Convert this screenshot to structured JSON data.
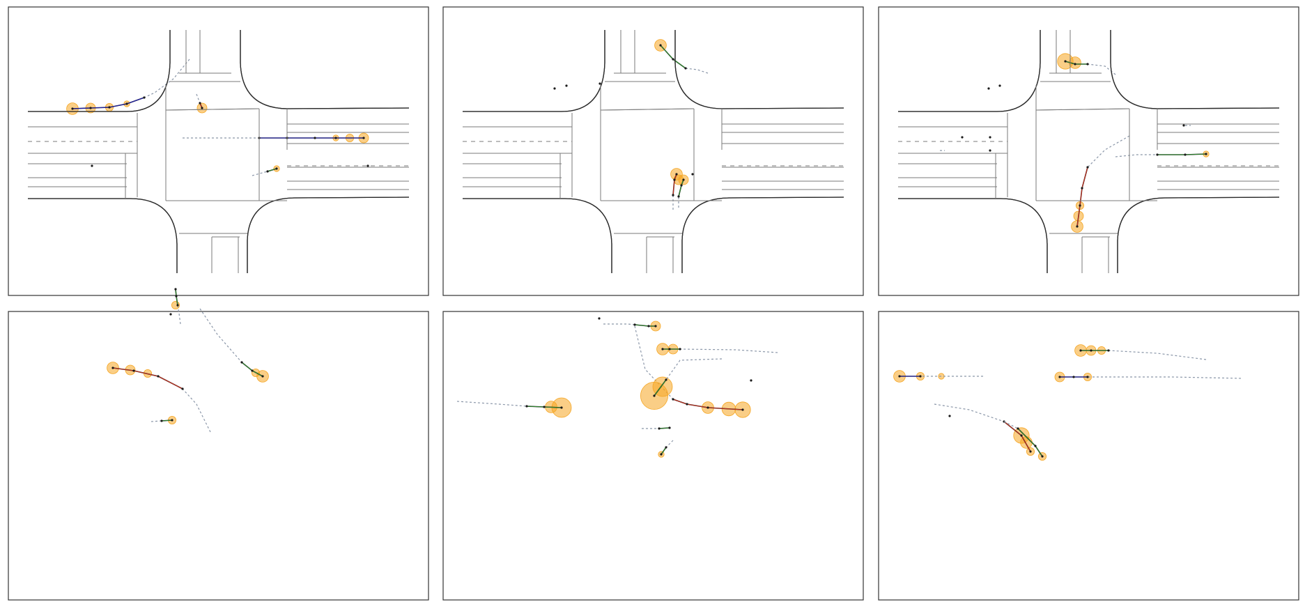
{
  "colors": {
    "road": "#2b2b2b",
    "lane": "#7a7a7a",
    "history": "#8a96a8",
    "dot": "#1a1a1a",
    "future_a": "#1f1fb4",
    "future_b": "#c8301e",
    "future_c": "#2e8b2e",
    "uncertainty": "#f5a623"
  },
  "panels": [
    {
      "name": "scene-1",
      "agents": [
        {
          "history": [
            [
              260,
              75
            ],
            [
              237,
              103
            ],
            [
              210,
              123
            ],
            [
              195,
              130
            ]
          ],
          "future": [
            [
              195,
              130
            ],
            [
              170,
              139
            ],
            [
              145,
              144
            ],
            [
              118,
              145
            ],
            [
              92,
              146
            ]
          ],
          "color": "future_a",
          "blobs": [
            [
              92,
              146,
              6
            ],
            [
              118,
              145,
              5
            ],
            [
              145,
              144,
              4
            ],
            [
              170,
              139,
              3
            ]
          ]
        },
        {
          "history": [
            [
              270,
              125
            ],
            [
              275,
              138
            ]
          ],
          "future": [
            [
              275,
              138
            ],
            [
              278,
              145
            ]
          ],
          "color": "future_b",
          "blobs": [
            [
              278,
              145,
              5
            ]
          ]
        },
        {
          "history": [
            [
              250,
              188
            ],
            [
              300,
              188
            ],
            [
              360,
              188
            ]
          ],
          "future": [
            [
              360,
              188
            ],
            [
              400,
              188
            ],
            [
              440,
              188
            ],
            [
              470,
              188
            ],
            [
              510,
              188
            ]
          ],
          "color": "future_a",
          "blobs": [
            [
              470,
              188,
              3
            ],
            [
              490,
              188,
              4
            ],
            [
              510,
              188,
              5
            ]
          ]
        },
        {
          "history": [
            [
              350,
              242
            ],
            [
              372,
              236
            ]
          ],
          "future": [
            [
              372,
              236
            ],
            [
              385,
              232
            ]
          ],
          "color": "future_c",
          "blobs": [
            [
              385,
              232,
              3
            ]
          ]
        }
      ],
      "dots": [
        [
          120,
          228
        ],
        [
          516,
          228
        ]
      ]
    },
    {
      "name": "scene-2",
      "agents": [
        {
          "history": [
            [
              380,
              95
            ],
            [
              365,
              90
            ],
            [
              348,
              88
            ]
          ],
          "future": [
            [
              348,
              88
            ],
            [
              330,
              75
            ],
            [
              312,
              55
            ]
          ],
          "color": "future_c",
          "blobs": [
            [
              312,
              55,
              6
            ]
          ]
        },
        {
          "history": [
            [
              330,
              291
            ],
            [
              330,
              270
            ]
          ],
          "future": [
            [
              330,
              270
            ],
            [
              332,
              248
            ],
            [
              335,
              240
            ]
          ],
          "color": "future_b",
          "blobs": [
            [
              335,
              240,
              6
            ],
            [
              338,
              248,
              5
            ]
          ]
        },
        {
          "history": [
            [
              338,
              288
            ],
            [
              338,
              272
            ]
          ],
          "future": [
            [
              338,
              272
            ],
            [
              342,
              256
            ],
            [
              345,
              248
            ]
          ],
          "color": "future_c",
          "blobs": [
            [
              345,
              248,
              5
            ]
          ]
        }
      ],
      "dots": [
        [
          160,
          117
        ],
        [
          177,
          113
        ],
        [
          225,
          110
        ],
        [
          358,
          240
        ]
      ]
    },
    {
      "name": "scene-3",
      "agents": [
        {
          "history": [
            [
              340,
              97
            ],
            [
              325,
              85
            ],
            [
              300,
              82
            ]
          ],
          "future": [
            [
              300,
              82
            ],
            [
              282,
              82
            ],
            [
              268,
              78
            ]
          ],
          "color": "future_c",
          "blobs": [
            [
              268,
              78,
              8
            ],
            [
              282,
              80,
              6
            ]
          ]
        },
        {
          "history": [
            [
              360,
              185
            ],
            [
              325,
              205
            ],
            [
              300,
              230
            ]
          ],
          "future": [
            [
              300,
              230
            ],
            [
              292,
              260
            ],
            [
              289,
              285
            ],
            [
              285,
              315
            ]
          ],
          "color": "future_b",
          "blobs": [
            [
              289,
              285,
              4
            ],
            [
              287,
              300,
              5
            ],
            [
              285,
              315,
              6
            ]
          ]
        },
        {
          "history": [
            [
              340,
              215
            ],
            [
              370,
              212
            ],
            [
              400,
              212
            ]
          ],
          "future": [
            [
              400,
              212
            ],
            [
              440,
              212
            ],
            [
              470,
              211
            ]
          ],
          "color": "future_c",
          "blobs": [
            [
              470,
              211,
              3
            ]
          ]
        },
        {
          "history": [
            [
              88,
              206
            ],
            [
              95,
              206
            ]
          ],
          "future": [],
          "color": "future_a",
          "blobs": []
        },
        {
          "history": [
            [
              440,
              170
            ],
            [
              448,
              170
            ]
          ],
          "future": [],
          "color": "future_a",
          "blobs": []
        }
      ],
      "dots": [
        [
          158,
          117
        ],
        [
          174,
          113
        ],
        [
          120,
          187
        ],
        [
          160,
          187
        ],
        [
          160,
          206
        ],
        [
          438,
          170
        ]
      ]
    },
    {
      "name": "scene-4",
      "agents": [
        {
          "history": [
            [
              247,
              455
            ],
            [
              245,
              440
            ],
            [
              243,
              428
            ]
          ],
          "future": [
            [
              243,
              428
            ],
            [
              241,
              415
            ],
            [
              240,
              405
            ]
          ],
          "color": "future_c",
          "blobs": [
            [
              240,
              428,
              4
            ]
          ]
        },
        {
          "history": [
            [
              275,
              433
            ],
            [
              300,
              470
            ],
            [
              335,
              510
            ]
          ],
          "future": [
            [
              335,
              510
            ],
            [
              350,
              522
            ],
            [
              365,
              530
            ]
          ],
          "color": "future_c",
          "blobs": [
            [
              355,
              525,
              4
            ],
            [
              365,
              530,
              6
            ]
          ]
        },
        {
          "history": [
            [
              290,
              610
            ],
            [
              270,
              570
            ],
            [
              250,
              548
            ]
          ],
          "future": [
            [
              250,
              548
            ],
            [
              215,
              530
            ],
            [
              180,
              522
            ],
            [
              150,
              518
            ]
          ],
          "color": "future_b",
          "blobs": [
            [
              150,
              518,
              6
            ],
            [
              175,
              521,
              5
            ],
            [
              200,
              526,
              4
            ]
          ]
        },
        {
          "history": [
            [
              205,
              595
            ],
            [
              220,
              594
            ]
          ],
          "future": [
            [
              220,
              594
            ],
            [
              235,
              593
            ]
          ],
          "color": "future_c",
          "blobs": [
            [
              235,
              593,
              4
            ]
          ]
        }
      ],
      "dots": [
        [
          233,
          441
        ]
      ]
    },
    {
      "name": "scene-5",
      "agents": [
        {
          "history": [
            [
              230,
              455
            ],
            [
              265,
              455
            ],
            [
              275,
              456
            ]
          ],
          "future": [
            [
              275,
              456
            ],
            [
              295,
              458
            ],
            [
              305,
              458
            ]
          ],
          "color": "future_c",
          "blobs": [
            [
              305,
              458,
              5
            ]
          ]
        },
        {
          "history": [
            [
              275,
              458
            ],
            [
              290,
              520
            ],
            [
              330,
              563
            ]
          ],
          "future": [
            [
              330,
              563
            ],
            [
              350,
              570
            ],
            [
              380,
              575
            ],
            [
              430,
              578
            ]
          ],
          "color": "future_b",
          "blobs": [
            [
              380,
              575,
              6
            ],
            [
              410,
              577,
              7
            ],
            [
              430,
              578,
              8
            ]
          ]
        },
        {
          "history": [
            [
              480,
              496
            ],
            [
              420,
              492
            ],
            [
              340,
              491
            ]
          ],
          "future": [
            [
              340,
              491
            ],
            [
              325,
              491
            ],
            [
              315,
              491
            ]
          ],
          "color": "future_c",
          "blobs": [
            [
              315,
              491,
              6
            ],
            [
              330,
              491,
              5
            ]
          ]
        },
        {
          "history": [
            [
              400,
              505
            ],
            [
              340,
              507
            ],
            [
              320,
              535
            ]
          ],
          "future": [
            [
              320,
              535
            ],
            [
              303,
              558
            ]
          ],
          "color": "future_c",
          "blobs": [
            [
              303,
              558,
              14
            ],
            [
              315,
              545,
              10
            ]
          ]
        },
        {
          "history": [
            [
              20,
              566
            ],
            [
              80,
              570
            ],
            [
              120,
              573
            ]
          ],
          "future": [
            [
              120,
              573
            ],
            [
              145,
              574
            ],
            [
              170,
              575
            ]
          ],
          "color": "future_c",
          "blobs": [
            [
              170,
              575,
              10
            ],
            [
              155,
              574,
              6
            ]
          ]
        },
        {
          "history": [
            [
              285,
              605
            ],
            [
              310,
              605
            ]
          ],
          "future": [
            [
              310,
              605
            ],
            [
              325,
              604
            ]
          ],
          "color": "future_c",
          "blobs": []
        },
        {
          "history": [
            [
              330,
              622
            ],
            [
              320,
              632
            ]
          ],
          "future": [
            [
              320,
              632
            ],
            [
              313,
              642
            ]
          ],
          "color": "future_c",
          "blobs": [
            [
              313,
              642,
              3
            ]
          ]
        }
      ],
      "dots": [
        [
          224,
          447
        ],
        [
          442,
          536
        ]
      ]
    },
    {
      "name": "scene-6",
      "agents": [
        {
          "history": [
            [
              150,
              530
            ],
            [
              110,
              530
            ],
            [
              60,
              530
            ]
          ],
          "future": [
            [
              60,
              530
            ],
            [
              30,
              530
            ]
          ],
          "color": "future_a",
          "blobs": [
            [
              30,
              530,
              6
            ],
            [
              60,
              530,
              4
            ],
            [
              90,
              530,
              3
            ]
          ]
        },
        {
          "history": [
            [
              520,
              533
            ],
            [
              420,
              531
            ],
            [
              300,
              531
            ]
          ],
          "future": [
            [
              300,
              531
            ],
            [
              280,
              531
            ],
            [
              260,
              531
            ]
          ],
          "color": "future_a",
          "blobs": [
            [
              300,
              531,
              4
            ],
            [
              260,
              531,
              5
            ]
          ]
        },
        {
          "history": [
            [
              470,
              506
            ],
            [
              400,
              497
            ],
            [
              330,
              493
            ]
          ],
          "future": [
            [
              330,
              493
            ],
            [
              305,
              493
            ],
            [
              290,
              493
            ]
          ],
          "color": "future_c",
          "blobs": [
            [
              290,
              493,
              6
            ],
            [
              305,
              493,
              5
            ],
            [
              320,
              493,
              4
            ]
          ]
        },
        {
          "history": [
            [
              80,
              570
            ],
            [
              130,
              578
            ],
            [
              180,
              595
            ]
          ],
          "future": [
            [
              180,
              595
            ],
            [
              205,
              615
            ],
            [
              218,
              638
            ]
          ],
          "color": "future_b",
          "blobs": [
            [
              205,
              615,
              8
            ],
            [
              212,
              625,
              6
            ],
            [
              218,
              638,
              4
            ]
          ]
        },
        {
          "history": [
            [
              180,
              595
            ],
            [
              200,
              605
            ]
          ],
          "future": [
            [
              200,
              605
            ],
            [
              225,
              630
            ],
            [
              235,
              645
            ]
          ],
          "color": "future_c",
          "blobs": [
            [
              235,
              645,
              4
            ]
          ]
        }
      ],
      "dots": [
        [
          102,
          587
        ]
      ]
    }
  ]
}
